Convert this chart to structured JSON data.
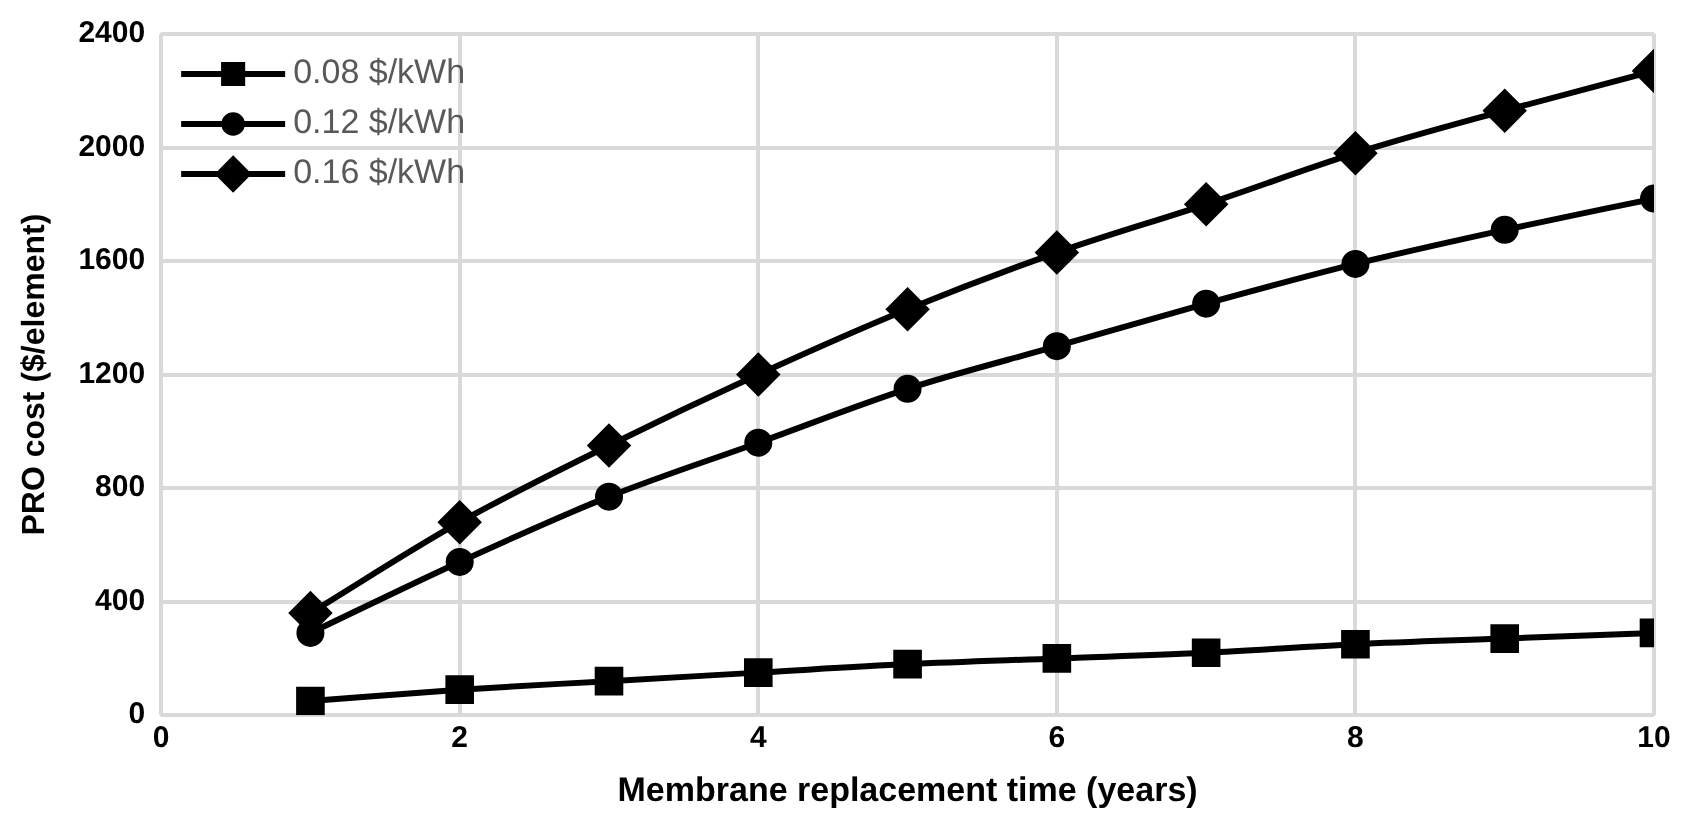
{
  "chart_data": {
    "type": "line",
    "xlabel": "Membrane replacement time (years)",
    "ylabel": "PRO cost ($/element)",
    "x": [
      1,
      2,
      3,
      4,
      5,
      6,
      7,
      8,
      9,
      10
    ],
    "xlim": [
      0,
      10
    ],
    "xticks": [
      0,
      2,
      4,
      6,
      8,
      10
    ],
    "ylim": [
      0,
      2400
    ],
    "yticks": [
      0,
      400,
      800,
      1200,
      1600,
      2000,
      2400
    ],
    "grid": true,
    "legend": "top left",
    "line_style": "solid",
    "series": [
      {
        "name": "0.08 $/kWh",
        "color": "#000000",
        "marker": "square",
        "values": [
          50,
          90,
          120,
          150,
          180,
          200,
          220,
          250,
          270,
          290
        ]
      },
      {
        "name": "0.12 $/kWh",
        "color": "#000000",
        "marker": "circle",
        "values": [
          290,
          540,
          770,
          960,
          1150,
          1300,
          1450,
          1590,
          1710,
          1820
        ]
      },
      {
        "name": "0.16 $/kWh",
        "color": "#000000",
        "marker": "diamond",
        "values": [
          360,
          680,
          950,
          1200,
          1430,
          1630,
          1800,
          1980,
          2130,
          2270
        ]
      }
    ]
  }
}
